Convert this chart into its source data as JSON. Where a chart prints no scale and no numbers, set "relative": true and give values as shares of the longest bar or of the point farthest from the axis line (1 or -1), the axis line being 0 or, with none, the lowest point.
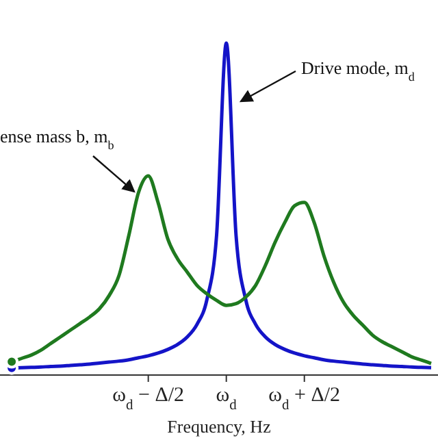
{
  "chart_data": {
    "type": "line",
    "relative": true,
    "xlabel": "Frequency, Hz",
    "categories": [
      null,
      null,
      null,
      null,
      null,
      null,
      null,
      null,
      null,
      null,
      null,
      null,
      null,
      null,
      "ω$_{d}$ − Δ/2",
      null,
      null,
      null,
      null,
      null,
      null,
      null,
      "ω$_{d}$",
      null,
      null,
      null,
      null,
      null,
      null,
      null,
      "ω$_{d}$ + Δ/2",
      null,
      null,
      null,
      null,
      null,
      null,
      null,
      null,
      null,
      null,
      null,
      null,
      null
    ],
    "grid": false,
    "marker": "none",
    "line_style": "solid",
    "annotations": [
      "Drive mode, m$_{d}$",
      "ense mass b, m$_{b}$"
    ],
    "series": [
      {
        "color": "#1414c8",
        "values": [
          0.021,
          0.022,
          0.023,
          0.024,
          0.026,
          0.027,
          0.029,
          0.031,
          0.033,
          0.036,
          0.039,
          0.042,
          0.046,
          0.052,
          0.058,
          0.066,
          0.077,
          0.092,
          0.115,
          0.153,
          0.226,
          0.42,
          1,
          0.42,
          0.226,
          0.153,
          0.115,
          0.092,
          0.077,
          0.066,
          0.058,
          0.052,
          0.046,
          0.042,
          0.039,
          0.036,
          0.033,
          0.031,
          0.029,
          0.027,
          0.026,
          0.024,
          0.023,
          0.022
        ]
      },
      {
        "color": "#1f7a1f",
        "values": [
          0.04,
          0.05,
          0.06,
          0.075,
          0.095,
          0.115,
          0.135,
          0.155,
          0.175,
          0.2,
          0.24,
          0.3,
          0.42,
          0.55,
          0.6,
          0.52,
          0.41,
          0.35,
          0.31,
          0.27,
          0.245,
          0.225,
          0.21,
          0.215,
          0.235,
          0.27,
          0.33,
          0.4,
          0.46,
          0.51,
          0.52,
          0.46,
          0.36,
          0.28,
          0.22,
          0.18,
          0.15,
          0.12,
          0.1,
          0.085,
          0.07,
          0.055,
          0.045,
          0.035
        ]
      }
    ]
  }
}
